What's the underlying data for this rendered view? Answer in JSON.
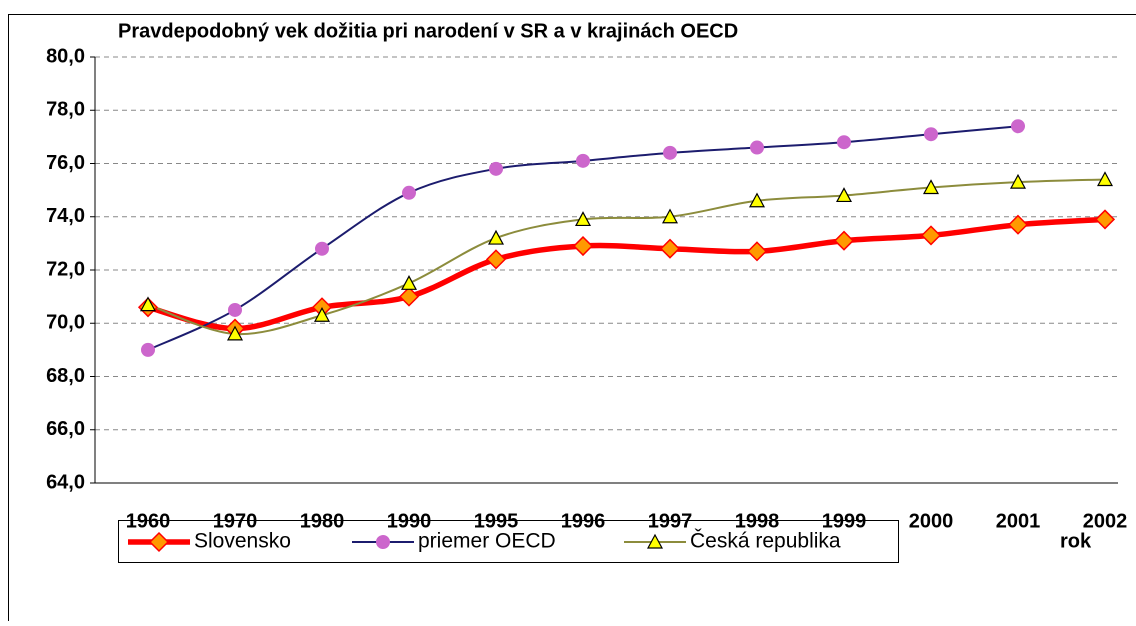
{
  "chart_data": {
    "type": "line",
    "title": "Pravdepodobný vek dožitia pri narodení v SR a v krajinách OECD",
    "x_label": "rok",
    "categories": [
      "1960",
      "1970",
      "1980",
      "1990",
      "1995",
      "1996",
      "1997",
      "1998",
      "1999",
      "2000",
      "2001",
      "2002"
    ],
    "series": [
      {
        "name": "Slovensko",
        "color": "#ff0000",
        "marker_color": "#ff9900",
        "values": [
          70.6,
          69.8,
          70.6,
          71.0,
          72.4,
          72.9,
          72.8,
          72.7,
          73.1,
          73.3,
          73.7,
          73.9
        ]
      },
      {
        "name": "priemer OECD",
        "color": "#1c1c6e",
        "marker_color": "#cc66cc",
        "values": [
          69.0,
          70.5,
          72.8,
          74.9,
          75.8,
          76.1,
          76.4,
          76.6,
          76.8,
          77.1,
          77.4,
          null
        ]
      },
      {
        "name": "Česká republika",
        "color": "#8c8c3c",
        "marker_color": "#ffff00",
        "values": [
          70.7,
          69.6,
          70.3,
          71.5,
          73.2,
          73.9,
          74.0,
          74.6,
          74.8,
          75.1,
          75.3,
          75.4
        ]
      }
    ],
    "ylim": [
      64,
      80
    ],
    "yticks": [
      {
        "value": 64,
        "label": "64,0"
      },
      {
        "value": 66,
        "label": "66,0"
      },
      {
        "value": 68,
        "label": "68,0"
      },
      {
        "value": 70,
        "label": "70,0"
      },
      {
        "value": 72,
        "label": "72,0"
      },
      {
        "value": 74,
        "label": "74,0"
      },
      {
        "value": 76,
        "label": "76,0"
      },
      {
        "value": 78,
        "label": "78,0"
      },
      {
        "value": 80,
        "label": "80,0"
      }
    ],
    "grid": true
  }
}
